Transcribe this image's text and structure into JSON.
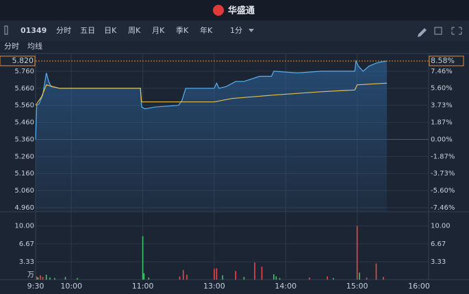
{
  "header": {
    "title": "华盛通"
  },
  "toolbar": {
    "code": "01349",
    "tabs": [
      "分时",
      "五日",
      "日K",
      "周K",
      "月K",
      "季K",
      "年K"
    ],
    "active": 0,
    "interval": "1分"
  },
  "chart_data": [
    {
      "type": "line",
      "last_price": {
        "value": 5.82,
        "label": "5.820"
      },
      "last_change": {
        "value": 8.58,
        "label": "8.58%"
      },
      "xlim": [
        0,
        330
      ],
      "xticks": [
        {
          "value": 0,
          "label": "9:30"
        },
        {
          "value": 30,
          "label": "10:00"
        },
        {
          "value": 90,
          "label": "11:00"
        },
        {
          "value": 150,
          "label": "13:00"
        },
        {
          "value": 210,
          "label": "14:00"
        },
        {
          "value": 270,
          "label": "15:00"
        },
        {
          "value": 330,
          "label": "16:00"
        }
      ],
      "ylim": [
        4.936,
        5.864
      ],
      "yticks": [
        {
          "value": 5.76,
          "label": "5.760"
        },
        {
          "value": 5.66,
          "label": "5.660"
        },
        {
          "value": 5.56,
          "label": "5.560"
        },
        {
          "value": 5.46,
          "label": "5.460"
        },
        {
          "value": 5.36,
          "label": "5.360"
        },
        {
          "value": 5.26,
          "label": "5.260"
        },
        {
          "value": 5.16,
          "label": "5.160"
        },
        {
          "value": 5.06,
          "label": "5.060"
        },
        {
          "value": 4.96,
          "label": "4.960"
        }
      ],
      "y2lim": [
        -7.91,
        9.4
      ],
      "y2ticks": [
        {
          "value": 7.46,
          "label": "7.46%"
        },
        {
          "value": 5.6,
          "label": "5.60%"
        },
        {
          "value": 3.73,
          "label": "3.73%"
        },
        {
          "value": 1.87,
          "label": "1.87%"
        },
        {
          "value": 0,
          "label": "0.00%"
        },
        {
          "value": -1.87,
          "label": "-1.87%"
        },
        {
          "value": -3.73,
          "label": "-3.73%"
        },
        {
          "value": -5.6,
          "label": "-5.60%"
        },
        {
          "value": -7.46,
          "label": "-7.46%"
        }
      ],
      "grid": true,
      "series": [
        {
          "name": "分时",
          "color": "#5ab0f0",
          "x": [
            0,
            1,
            3,
            6,
            9,
            11,
            13,
            20,
            40,
            60,
            88,
            89,
            92,
            100,
            120,
            123,
            126,
            150,
            152,
            154,
            160,
            168,
            175,
            188,
            198,
            200,
            220,
            240,
            268,
            269,
            271,
            275,
            280,
            287,
            295
          ],
          "values": [
            5.36,
            5.56,
            5.57,
            5.62,
            5.75,
            5.7,
            5.67,
            5.66,
            5.66,
            5.66,
            5.66,
            5.55,
            5.54,
            5.55,
            5.56,
            5.59,
            5.66,
            5.66,
            5.69,
            5.66,
            5.67,
            5.7,
            5.7,
            5.73,
            5.73,
            5.76,
            5.75,
            5.76,
            5.76,
            5.82,
            5.79,
            5.76,
            5.79,
            5.81,
            5.82
          ]
        },
        {
          "name": "均线",
          "color": "#e8c04a",
          "x": [
            0,
            5,
            9,
            20,
            88,
            89,
            150,
            165,
            200,
            240,
            268,
            270,
            295
          ],
          "values": [
            5.56,
            5.61,
            5.68,
            5.66,
            5.66,
            5.58,
            5.58,
            5.6,
            5.62,
            5.64,
            5.65,
            5.68,
            5.69
          ]
        }
      ]
    },
    {
      "type": "volume",
      "unit": "万",
      "xlim": [
        0,
        330
      ],
      "ylim": [
        0,
        11.5
      ],
      "yticks": [
        {
          "value": 10,
          "label": "10.00"
        },
        {
          "value": 6.67,
          "label": "6.67"
        },
        {
          "value": 3.33,
          "label": "3.33"
        }
      ],
      "x": [
        1,
        2,
        4,
        6,
        9,
        12,
        16,
        25,
        35,
        90,
        91,
        95,
        121,
        124,
        127,
        150,
        152,
        157,
        168,
        175,
        184,
        190,
        200,
        202,
        205,
        230,
        245,
        250,
        270,
        272,
        278,
        286,
        292
      ],
      "values": [
        0.6,
        0.4,
        0.8,
        0.5,
        0.9,
        0.4,
        0.3,
        0.5,
        0.3,
        8.1,
        1.2,
        0.4,
        0.6,
        1.8,
        0.9,
        2.0,
        2.1,
        0.8,
        1.6,
        0.5,
        3.2,
        2.4,
        1.0,
        0.6,
        0.3,
        0.4,
        0.6,
        0.3,
        10.0,
        1.3,
        0.4,
        3.0,
        0.5
      ],
      "bar_colors": [
        "#e84a4a",
        "#3cc46a",
        "#e84a4a",
        "#e84a4a",
        "#3cc46a",
        "#3cc46a",
        "#3cc46a",
        "#3cc46a",
        "#3cc46a",
        "#3cc46a",
        "#3cc46a",
        "#3cc46a",
        "#e84a4a",
        "#e84a4a",
        "#e84a4a",
        "#e84a4a",
        "#e84a4a",
        "#3cc46a",
        "#e84a4a",
        "#3cc46a",
        "#e84a4a",
        "#e84a4a",
        "#3cc46a",
        "#3cc46a",
        "#3cc46a",
        "#e84a4a",
        "#e84a4a",
        "#3cc46a",
        "#e84a4a",
        "#3cc46a",
        "#e84a4a",
        "#e84a4a",
        "#e84a4a"
      ]
    }
  ]
}
